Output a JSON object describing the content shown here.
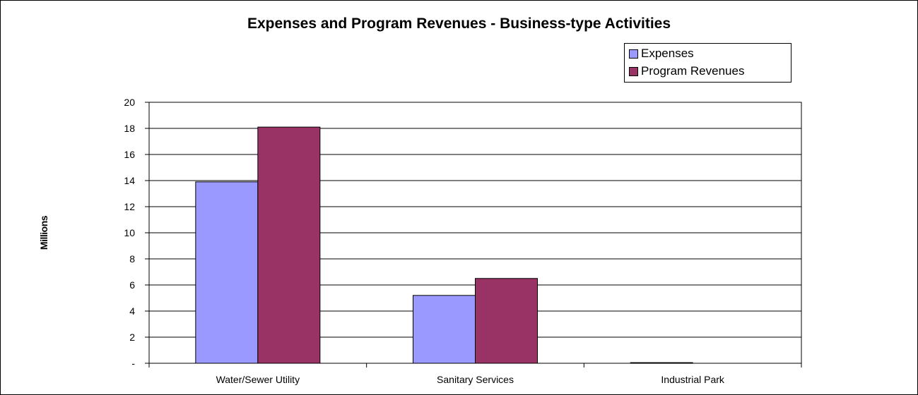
{
  "chart_data": {
    "type": "bar",
    "title": "Expenses and Program Revenues - Business-type Activities",
    "ylabel": "Millions",
    "xlabel": "",
    "categories": [
      "Water/Sewer Utility",
      "Sanitary Services",
      "Industrial Park"
    ],
    "series": [
      {
        "name": "Expenses",
        "values": [
          13.9,
          5.2,
          0.05
        ],
        "color": "#9999ff"
      },
      {
        "name": "Program Revenues",
        "values": [
          18.1,
          6.5,
          0.0
        ],
        "color": "#993366"
      }
    ],
    "ylim": [
      0,
      20
    ],
    "yticks": [
      0,
      2,
      4,
      6,
      8,
      10,
      12,
      14,
      16,
      18,
      20
    ],
    "ytick_labels": [
      "-",
      "2",
      "4",
      "6",
      "8",
      "10",
      "12",
      "14",
      "16",
      "18",
      "20"
    ],
    "grid": true,
    "legend_position": "top-right"
  }
}
